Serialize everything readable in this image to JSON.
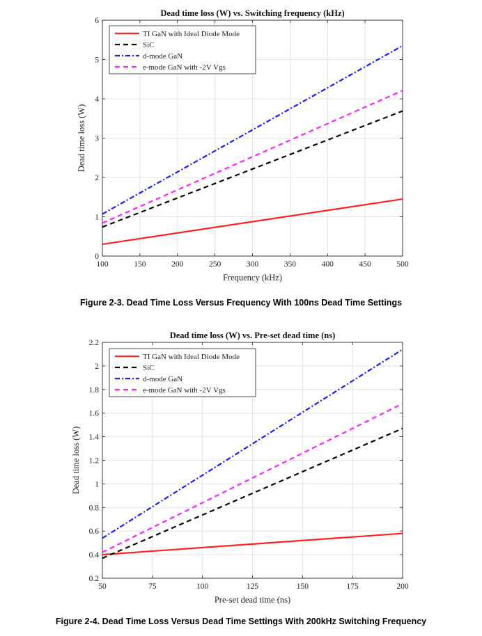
{
  "chart_data": [
    {
      "type": "line",
      "title": "Dead time loss (W) vs. Switching frequency (kHz)",
      "xlabel": "Frequency (kHz)",
      "ylabel": "Dead time loss (W)",
      "xlim": [
        100,
        500
      ],
      "ylim": [
        0,
        6
      ],
      "xticks": [
        100,
        150,
        200,
        250,
        300,
        350,
        400,
        450,
        500
      ],
      "yticks": [
        0,
        1,
        2,
        3,
        4,
        5,
        6
      ],
      "grid": true,
      "legend_position": "top-left",
      "x": [
        100,
        500
      ],
      "series": [
        {
          "name": "TI GaN with Ideal Diode Mode",
          "values": [
            0.3,
            1.45
          ],
          "color": "#ff2020",
          "style": "solid"
        },
        {
          "name": "SiC",
          "values": [
            0.74,
            3.69
          ],
          "color": "#000000",
          "style": "dash"
        },
        {
          "name": "d-mode GaN",
          "values": [
            1.07,
            5.35
          ],
          "color": "#1a1aff",
          "style": "dashdot"
        },
        {
          "name": "e-mode GaN with -2V Vgs",
          "values": [
            0.84,
            4.21
          ],
          "color": "#ff22ff",
          "style": "dash"
        }
      ]
    },
    {
      "type": "line",
      "title": "Dead time loss (W) vs. Pre-set dead time (ns)",
      "xlabel": "Pre-set dead time (ns)",
      "ylabel": "Dead time loss (W)",
      "xlim": [
        50,
        200
      ],
      "ylim": [
        0.2,
        2.2
      ],
      "xticks": [
        50,
        75,
        100,
        125,
        150,
        175,
        200
      ],
      "yticks": [
        0.2,
        0.4,
        0.6,
        0.8,
        1,
        1.2,
        1.4,
        1.6,
        1.8,
        2,
        2.2
      ],
      "grid": true,
      "legend_position": "top-left",
      "x": [
        50,
        200
      ],
      "series": [
        {
          "name": "TI GaN with Ideal Diode Mode",
          "values": [
            0.4,
            0.58
          ],
          "color": "#ff2020",
          "style": "solid"
        },
        {
          "name": "SiC",
          "values": [
            0.37,
            1.47
          ],
          "color": "#000000",
          "style": "dash"
        },
        {
          "name": "d-mode GaN",
          "values": [
            0.54,
            2.14
          ],
          "color": "#1a1aff",
          "style": "dashdot"
        },
        {
          "name": "e-mode GaN with -2V Vgs",
          "values": [
            0.42,
            1.68
          ],
          "color": "#ff22ff",
          "style": "dash"
        }
      ]
    }
  ],
  "captions": {
    "figure1": "Figure 2-3. Dead Time Loss Versus Frequency With 100ns Dead Time Settings",
    "figure2": "Figure 2-4. Dead Time Loss Versus Dead Time Settings With 200kHz Switching Frequency"
  }
}
